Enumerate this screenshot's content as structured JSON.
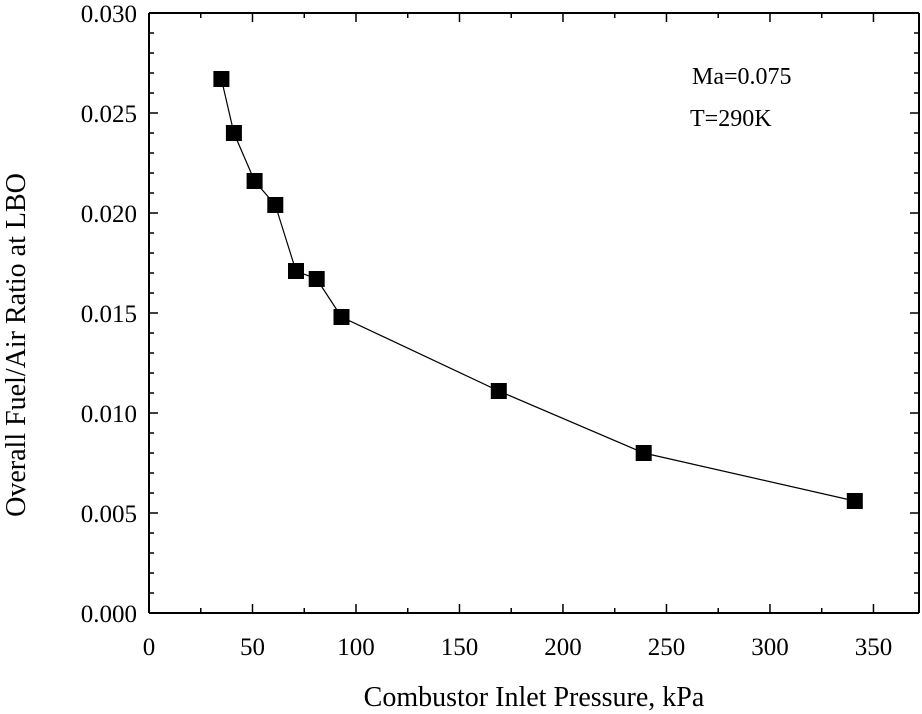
{
  "chart_data": {
    "type": "scatter",
    "title": "",
    "xlabel": "Combustor Inlet Pressure,  kPa",
    "ylabel": "Overall  Fuel/Air Ratio at LBO",
    "xlim": [
      0,
      372
    ],
    "ylim": [
      0,
      0.03
    ],
    "x_ticks": [
      0,
      50,
      100,
      150,
      200,
      250,
      300,
      350
    ],
    "x_tick_labels": [
      "0",
      "50",
      "100",
      "150",
      "200",
      "250",
      "300",
      "350"
    ],
    "y_ticks": [
      0,
      0.005,
      0.01,
      0.015,
      0.02,
      0.025,
      0.03
    ],
    "y_tick_labels": [
      "0.000",
      "0.005",
      "0.010",
      "0.015",
      "0.020",
      "0.025",
      "0.030"
    ],
    "grid": false,
    "series": [
      {
        "name": "LBO",
        "marker": "filled-square",
        "connected": true,
        "color": "#000000",
        "x": [
          35,
          41,
          51,
          61,
          71,
          81,
          93,
          169,
          239,
          341
        ],
        "y": [
          0.0267,
          0.024,
          0.0216,
          0.0204,
          0.0171,
          0.0167,
          0.0148,
          0.0111,
          0.008,
          0.0056
        ]
      }
    ],
    "annotations": [
      "Ma=0.075",
      "T=290K"
    ]
  }
}
